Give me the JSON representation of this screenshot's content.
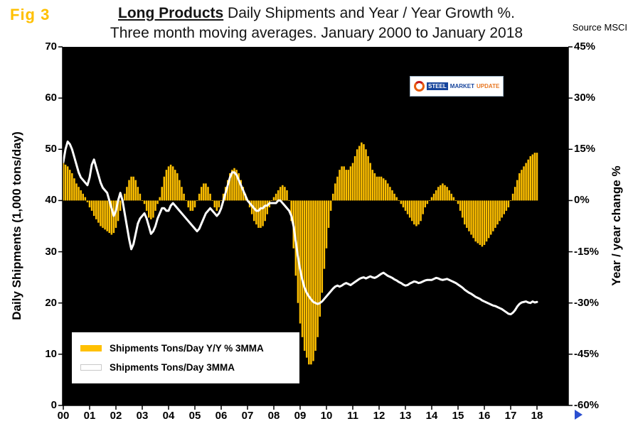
{
  "fig_label": "Fig 3",
  "title": {
    "bold": "Long Products",
    "rest": " Daily Shipments and Year / Year Growth %.",
    "line2": "Three month moving averages. January 2000 to January 2018"
  },
  "source": "Source MSCI",
  "logo": {
    "steel": "STEEL",
    "market": "MARKET",
    "update": "UPDATE"
  },
  "legend": [
    {
      "label": "Shipments Tons/Day Y/Y % 3MMA",
      "color": "#FFC000"
    },
    {
      "label": "Shipments Tons/Day 3MMA",
      "color": "#FFFFFF"
    }
  ],
  "axes": {
    "left": {
      "title": "Daily Shipments (1,000 tons/day)",
      "tick_labels": [
        "0",
        "10",
        "20",
        "30",
        "40",
        "50",
        "60",
        "70"
      ]
    },
    "right": {
      "title": "Year / year change %",
      "tick_labels": [
        "-60%",
        "-45%",
        "-30%",
        "-15%",
        "0%",
        "15%",
        "30%",
        "45%"
      ]
    },
    "x": {
      "tick_labels": [
        "00",
        "01",
        "02",
        "03",
        "04",
        "05",
        "06",
        "07",
        "08",
        "09",
        "10",
        "11",
        "12",
        "13",
        "14",
        "15",
        "16",
        "17",
        "18"
      ]
    }
  },
  "chart_data": {
    "type": "combo",
    "title": "Long Products Daily Shipments and Year / Year Growth %. Three month moving averages. January 2000 to January 2018",
    "x_start": "2000-01",
    "x_end": "2018-01",
    "x_frequency": "monthly",
    "x_tick_labels": [
      "00",
      "01",
      "02",
      "03",
      "04",
      "05",
      "06",
      "07",
      "08",
      "09",
      "10",
      "11",
      "12",
      "13",
      "14",
      "15",
      "16",
      "17",
      "18"
    ],
    "left_axis": {
      "label": "Daily Shipments (1,000 tons/day)",
      "range": [
        0,
        70
      ],
      "tick_step": 10
    },
    "right_axis": {
      "label": "Year / year change %",
      "range": [
        -60,
        45
      ],
      "tick_step": 15,
      "unit": "%"
    },
    "plot_background": "#000000",
    "legend_position": "inside-bottom-left",
    "series": [
      {
        "name": "Shipments Tons/Day Y/Y % 3MMA",
        "type": "bar",
        "axis": "right",
        "color": "#FFC000",
        "values": [
          11,
          10.5,
          10,
          9,
          8,
          6.5,
          5,
          4,
          3,
          2,
          1,
          -0.5,
          -2,
          -3,
          -4.5,
          -5.5,
          -6.5,
          -7.5,
          -8,
          -8.5,
          -9,
          -9.5,
          -10,
          -9.5,
          -8,
          -6,
          -3,
          0,
          2,
          4,
          6,
          7,
          7,
          6,
          4,
          2,
          0,
          -1,
          -3,
          -5,
          -5.5,
          -5,
          -3,
          -1,
          1,
          4,
          7,
          9,
          10,
          10.5,
          10,
          9,
          8,
          6,
          4,
          2,
          0,
          -2,
          -3,
          -3,
          -2,
          0,
          2,
          4,
          5,
          5,
          4,
          2,
          0,
          -2,
          -3,
          -2,
          0,
          2,
          4,
          6,
          8,
          9,
          9.5,
          9,
          8,
          6,
          4,
          2,
          0,
          -2,
          -4,
          -6,
          -7,
          -8,
          -8,
          -7.5,
          -6,
          -4,
          -2,
          0,
          1,
          2,
          3,
          4,
          4.5,
          4,
          3,
          0,
          -6,
          -14,
          -22,
          -30,
          -36,
          -40,
          -44,
          -46,
          -48,
          -48,
          -47,
          -44,
          -40,
          -34,
          -27,
          -20,
          -14,
          -8,
          -3,
          2,
          5,
          7,
          9,
          10,
          10,
          9,
          9,
          10,
          11,
          13,
          15,
          16,
          17,
          16.5,
          15,
          13,
          11,
          9,
          8,
          7,
          7,
          7,
          6.5,
          6,
          5,
          4,
          3,
          2,
          1,
          0,
          -1,
          -2,
          -3,
          -4,
          -5,
          -6,
          -7,
          -7.5,
          -7,
          -6,
          -4,
          -2,
          -1,
          0,
          1,
          2,
          3,
          4,
          4.5,
          5,
          4.5,
          4,
          3,
          2,
          1,
          0,
          -1,
          -3,
          -5,
          -7,
          -8,
          -9,
          -10,
          -11,
          -12,
          -12.5,
          -13,
          -13.5,
          -13,
          -12,
          -11,
          -10,
          -9,
          -8,
          -7,
          -6,
          -5,
          -4,
          -3,
          -2,
          0,
          2,
          4,
          6,
          8,
          9,
          10,
          11,
          12,
          13,
          13.5,
          14,
          14
        ]
      },
      {
        "name": "Shipments Tons/Day 3MMA",
        "type": "line",
        "axis": "left",
        "color": "#FFFFFF",
        "values": [
          47.5,
          50,
          51.5,
          51,
          50,
          48.5,
          47,
          45.5,
          44.5,
          44,
          43.5,
          43,
          44.5,
          47,
          48,
          46.5,
          45,
          43.5,
          42.5,
          42,
          41.5,
          40,
          38.5,
          37,
          38,
          40,
          41.5,
          40,
          37.5,
          35,
          32.5,
          30.5,
          31.5,
          33.5,
          35.5,
          36.5,
          37,
          37.5,
          36.5,
          35,
          33.5,
          34,
          35,
          36.5,
          37.5,
          38.5,
          38.5,
          38,
          38,
          39,
          39.5,
          39,
          38.5,
          38,
          37.5,
          37,
          36.5,
          36,
          35.5,
          35,
          34.5,
          34,
          34.5,
          35.5,
          36.5,
          37.5,
          38,
          38.5,
          38,
          37.5,
          37,
          37.5,
          38.5,
          40,
          41.5,
          43,
          44.5,
          45.5,
          45.5,
          45,
          44,
          43,
          42,
          41,
          40,
          39.5,
          39,
          38.5,
          38,
          38,
          38.5,
          38.5,
          39,
          39,
          39.5,
          39.5,
          39.5,
          39.5,
          40,
          40,
          39.5,
          39,
          38.5,
          38,
          37,
          35,
          32,
          29,
          26.5,
          24.5,
          23,
          22,
          21.3,
          20.7,
          20.2,
          20,
          19.8,
          20,
          20.3,
          20.8,
          21.3,
          21.8,
          22.3,
          22.8,
          23.2,
          23.4,
          23.2,
          23.4,
          23.7,
          23.9,
          23.7,
          23.5,
          23.8,
          24.1,
          24.4,
          24.7,
          24.9,
          25,
          24.8,
          25,
          25.2,
          25,
          24.9,
          25.1,
          25.4,
          25.7,
          25.9,
          25.6,
          25.3,
          25.1,
          24.9,
          24.6,
          24.4,
          24.1,
          23.9,
          23.6,
          23.4,
          23.5,
          23.8,
          24,
          24.2,
          24.1,
          23.9,
          24,
          24.2,
          24.4,
          24.5,
          24.5,
          24.5,
          24.7,
          24.9,
          24.8,
          24.6,
          24.5,
          24.6,
          24.7,
          24.5,
          24.3,
          24.1,
          23.9,
          23.6,
          23.3,
          23,
          22.6,
          22.3,
          22,
          21.8,
          21.5,
          21.2,
          21,
          20.8,
          20.5,
          20.3,
          20.1,
          19.9,
          19.7,
          19.5,
          19.4,
          19.2,
          19,
          18.8,
          18.5,
          18.2,
          17.9,
          17.8,
          18.1,
          18.6,
          19.3,
          19.8,
          20.1,
          20.2,
          20.3,
          20.1,
          20,
          20.3,
          20.1,
          20.2
        ]
      }
    ]
  }
}
